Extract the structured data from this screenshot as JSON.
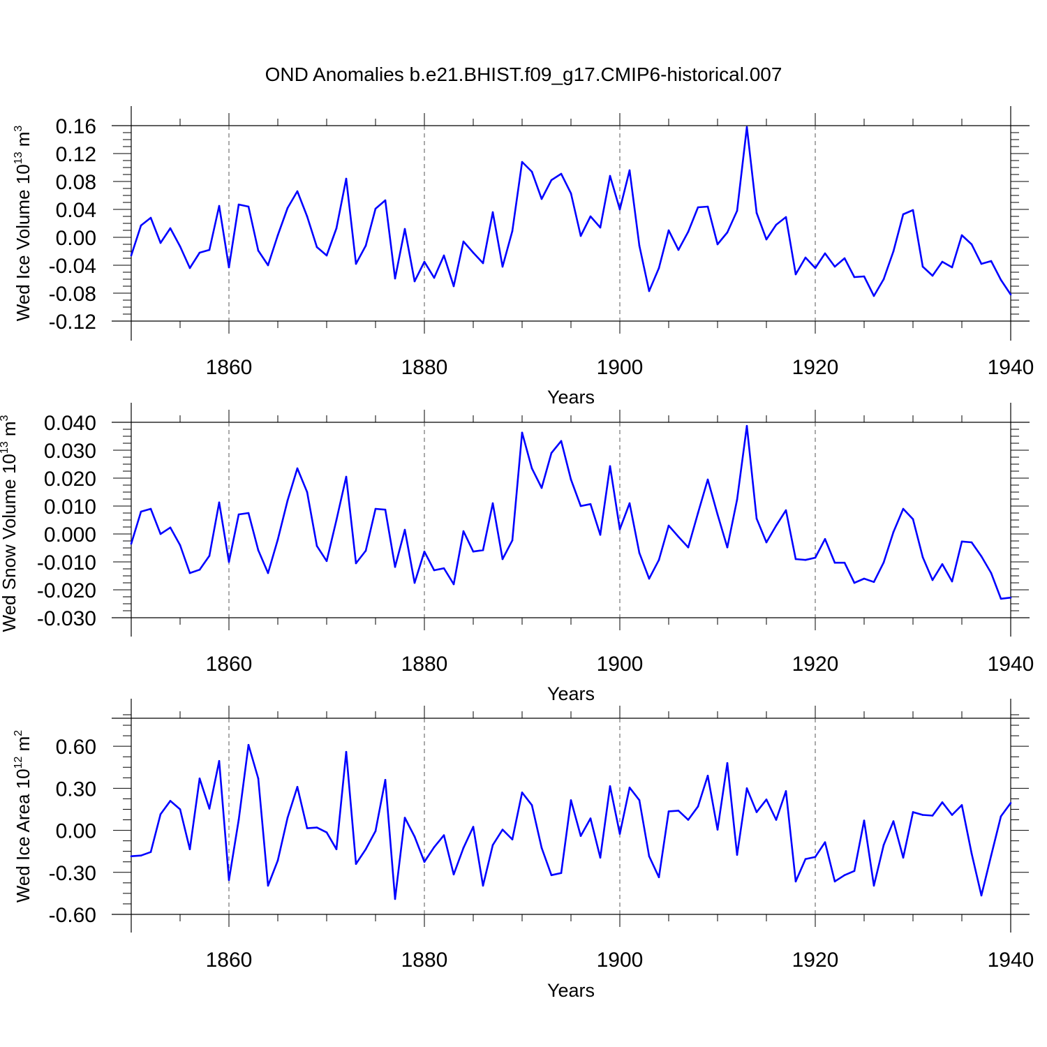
{
  "figure": {
    "title": "OND Anomalies b.e21.BHIST.f09_g17.CMIP6-historical.007",
    "line_color": "#0000ff"
  },
  "chart_data": [
    {
      "type": "line",
      "name": "Wed Ice Volume",
      "ylabel": {
        "text": "Wed Ice Volume 10",
        "exp": "13",
        "unit": " m",
        "unit_exp": "3"
      },
      "xlabel": "Years",
      "xlim": [
        1850,
        1940
      ],
      "ylim": [
        -0.12,
        0.16
      ],
      "yticks": [
        -0.12,
        -0.08,
        -0.04,
        0.0,
        0.04,
        0.08,
        0.12,
        0.16
      ],
      "yticklabels": [
        "-0.12",
        "-0.08",
        "-0.04",
        "0.00",
        "0.04",
        "0.08",
        "0.12",
        "0.16"
      ],
      "xticks": [
        1860,
        1880,
        1900,
        1920,
        1940
      ],
      "xticklabels": [
        "1860",
        "1880",
        "1900",
        "1920",
        "1940"
      ],
      "x_start": 1850,
      "values": [
        -0.026,
        0.017,
        0.028,
        -0.008,
        0.013,
        -0.013,
        -0.044,
        -0.022,
        -0.018,
        0.045,
        -0.043,
        0.047,
        0.044,
        -0.019,
        -0.04,
        0.003,
        0.042,
        0.066,
        0.03,
        -0.014,
        -0.026,
        0.013,
        0.084,
        -0.038,
        -0.012,
        0.041,
        0.053,
        -0.059,
        0.012,
        -0.063,
        -0.035,
        -0.058,
        -0.026,
        -0.07,
        -0.006,
        -0.022,
        -0.037,
        0.036,
        -0.042,
        0.009,
        0.108,
        0.094,
        0.055,
        0.082,
        0.091,
        0.063,
        0.002,
        0.03,
        0.014,
        0.088,
        0.04,
        0.096,
        -0.012,
        -0.077,
        -0.044,
        0.01,
        -0.018,
        0.008,
        0.043,
        0.044,
        -0.01,
        0.007,
        0.038,
        0.158,
        0.035,
        -0.003,
        0.018,
        0.029,
        -0.053,
        -0.029,
        -0.044,
        -0.023,
        -0.042,
        -0.03,
        -0.057,
        -0.056,
        -0.084,
        -0.06,
        -0.02,
        0.033,
        0.039,
        -0.042,
        -0.055,
        -0.035,
        -0.043,
        0.003,
        -0.01,
        -0.038,
        -0.034,
        -0.061,
        -0.082
      ]
    },
    {
      "type": "line",
      "name": "Wed Snow Volume",
      "ylabel": {
        "text": "Wed Snow Volume 10",
        "exp": "13",
        "unit": " m",
        "unit_exp": "3"
      },
      "xlabel": "Years",
      "xlim": [
        1850,
        1940
      ],
      "ylim": [
        -0.03,
        0.04
      ],
      "yticks": [
        -0.03,
        -0.02,
        -0.01,
        0.0,
        0.01,
        0.02,
        0.03,
        0.04
      ],
      "yticklabels": [
        "-0.030",
        "-0.020",
        "-0.010",
        "0.000",
        "0.010",
        "0.020",
        "0.030",
        "0.040"
      ],
      "xticks": [
        1860,
        1880,
        1900,
        1920,
        1940
      ],
      "xticklabels": [
        "1860",
        "1880",
        "1900",
        "1920",
        "1940"
      ],
      "x_start": 1850,
      "values": [
        -0.0035,
        0.008,
        0.009,
        0.0,
        0.0023,
        -0.004,
        -0.014,
        -0.0128,
        -0.0078,
        0.0113,
        -0.01,
        0.007,
        0.0075,
        -0.0058,
        -0.014,
        -0.002,
        0.012,
        0.0235,
        0.015,
        -0.0043,
        -0.0097,
        0.005,
        0.0205,
        -0.0105,
        -0.006,
        0.009,
        0.0087,
        -0.0118,
        0.0015,
        -0.0175,
        -0.0063,
        -0.013,
        -0.0123,
        -0.018,
        0.001,
        -0.0063,
        -0.0058,
        0.011,
        -0.009,
        -0.0023,
        0.0363,
        0.0235,
        0.0165,
        0.029,
        0.0333,
        0.0195,
        0.01,
        0.0107,
        -0.0003,
        0.0243,
        0.0017,
        0.011,
        -0.0068,
        -0.016,
        -0.0093,
        0.003,
        -0.001,
        -0.0048,
        0.0075,
        0.0195,
        0.007,
        -0.0048,
        0.0123,
        0.0387,
        0.0055,
        -0.003,
        0.003,
        0.0085,
        -0.009,
        -0.0093,
        -0.0085,
        -0.0018,
        -0.0103,
        -0.0103,
        -0.0175,
        -0.016,
        -0.0172,
        -0.0102,
        0.0007,
        0.009,
        0.0053,
        -0.0083,
        -0.0165,
        -0.0108,
        -0.017,
        -0.0027,
        -0.003,
        -0.008,
        -0.014,
        -0.0232,
        -0.0228
      ]
    },
    {
      "type": "line",
      "name": "Wed Ice Area",
      "ylabel": {
        "text": "Wed Ice Area 10",
        "exp": "12",
        "unit": " m",
        "unit_exp": "2"
      },
      "xlabel": "Years",
      "xlim": [
        1850,
        1940
      ],
      "ylim": [
        -0.6,
        0.8
      ],
      "yticks": [
        -0.6,
        -0.3,
        0.0,
        0.3,
        0.6
      ],
      "yticklabels": [
        "-0.60",
        "-0.30",
        "0.00",
        "0.30",
        "0.60"
      ],
      "xticks": [
        1860,
        1880,
        1900,
        1920,
        1940
      ],
      "xticklabels": [
        "1860",
        "1880",
        "1900",
        "1920",
        "1940"
      ],
      "x_start": 1850,
      "values": [
        -0.185,
        -0.18,
        -0.155,
        0.115,
        0.21,
        0.15,
        -0.135,
        0.37,
        0.155,
        0.495,
        -0.355,
        0.075,
        0.61,
        0.37,
        -0.395,
        -0.215,
        0.09,
        0.31,
        0.015,
        0.02,
        -0.015,
        -0.135,
        0.56,
        -0.24,
        -0.135,
        -0.005,
        0.36,
        -0.49,
        0.09,
        -0.045,
        -0.225,
        -0.12,
        -0.035,
        -0.315,
        -0.125,
        0.025,
        -0.395,
        -0.105,
        0.005,
        -0.065,
        0.27,
        0.18,
        -0.125,
        -0.32,
        -0.305,
        0.215,
        -0.04,
        0.085,
        -0.195,
        0.315,
        -0.025,
        0.305,
        0.215,
        -0.185,
        -0.335,
        0.135,
        0.14,
        0.075,
        0.17,
        0.39,
        0.005,
        0.48,
        -0.175,
        0.3,
        0.13,
        0.22,
        0.075,
        0.28,
        -0.365,
        -0.205,
        -0.19,
        -0.085,
        -0.365,
        -0.32,
        -0.29,
        0.07,
        -0.395,
        -0.105,
        0.065,
        -0.195,
        0.13,
        0.11,
        0.105,
        0.2,
        0.11,
        0.18,
        -0.165,
        -0.465,
        -0.18,
        0.1,
        0.195
      ]
    }
  ]
}
